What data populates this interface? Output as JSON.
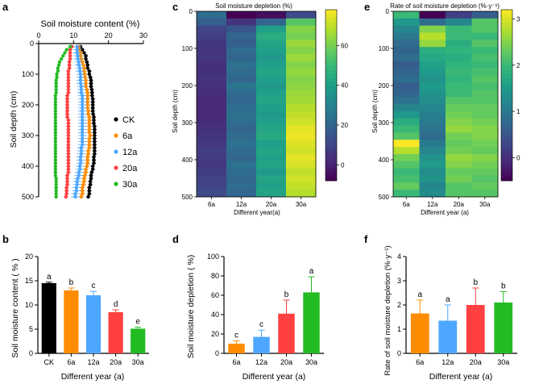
{
  "panel_labels": {
    "a": "a",
    "b": "b",
    "c": "c",
    "d": "d",
    "e": "e",
    "f": "f"
  },
  "colors": {
    "CK": "#000000",
    "6a": "#ff8c00",
    "12a": "#4da6ff",
    "20a": "#ff4040",
    "30a": "#22bb22"
  },
  "chart_data": [
    {
      "id": "a",
      "type": "scatter",
      "title": "Soil moisture content (%)",
      "ylabel": "Soil depth (cm)",
      "xlim": [
        0,
        30
      ],
      "ylim": [
        500,
        0
      ],
      "xticks": [
        "0",
        "10",
        "20",
        "30"
      ],
      "yticks": [
        "0",
        "100",
        "200",
        "300",
        "400",
        "500"
      ],
      "depths": [
        10,
        20,
        30,
        40,
        50,
        60,
        70,
        80,
        90,
        100,
        110,
        120,
        130,
        140,
        150,
        160,
        170,
        180,
        190,
        200,
        210,
        220,
        230,
        240,
        250,
        260,
        270,
        280,
        290,
        300,
        310,
        320,
        330,
        340,
        350,
        360,
        370,
        380,
        390,
        400,
        410,
        420,
        430,
        440,
        450,
        460,
        470,
        480,
        490,
        500
      ],
      "legend": [
        "CK",
        "6a",
        "12a",
        "20a",
        "30a"
      ],
      "series": [
        {
          "name": "CK",
          "err": 0.6,
          "values": [
            12,
            12.5,
            13,
            13.5,
            13.5,
            13.8,
            14,
            14,
            14.5,
            14.5,
            14.8,
            15,
            15,
            15,
            15.2,
            15.3,
            15.3,
            15.5,
            15.5,
            15.5,
            15.5,
            15.5,
            15.6,
            15.8,
            15.8,
            15.8,
            16,
            16,
            16,
            16,
            16,
            16,
            16,
            16,
            16,
            16,
            15.8,
            15.8,
            15.8,
            15.5,
            15.5,
            15.2,
            15,
            15,
            14.8,
            14.8,
            14.5,
            14.5,
            14.5,
            14.2
          ]
        },
        {
          "name": "6a",
          "err": 0.8,
          "values": [
            11.5,
            11.5,
            12,
            12,
            12.2,
            12.5,
            12.8,
            13,
            13,
            13.2,
            13.3,
            13.5,
            13.5,
            13.5,
            13.8,
            14,
            14,
            14,
            14,
            14,
            14,
            14.2,
            14.2,
            14.5,
            14.5,
            14.5,
            14.5,
            14.5,
            14.5,
            14.8,
            14.5,
            14.5,
            14.5,
            14.5,
            14.2,
            14.2,
            14,
            14,
            14,
            13.8,
            13.5,
            13.5,
            13.2,
            13,
            13,
            12.8,
            12.5,
            12.5,
            12.5,
            12.2
          ]
        },
        {
          "name": "12a",
          "err": 1.2,
          "values": [
            11,
            11,
            11,
            11.2,
            11.2,
            11.5,
            11.5,
            11.8,
            11.8,
            12,
            12,
            12,
            12,
            12.2,
            12.2,
            12.2,
            12.5,
            12.5,
            12.5,
            12.5,
            12.5,
            12.5,
            12.5,
            12.5,
            12.5,
            12.5,
            12.5,
            12.5,
            12.5,
            12.5,
            12.5,
            12.5,
            12.5,
            12.2,
            12.2,
            12.2,
            12,
            12,
            12,
            11.8,
            11.8,
            11.5,
            11.5,
            11.2,
            11,
            11,
            10.8,
            10.8,
            10.5,
            10.5
          ]
        },
        {
          "name": "20a",
          "err": 0.6,
          "values": [
            9.5,
            9,
            9,
            9,
            9,
            8.8,
            8.8,
            8.8,
            8.5,
            8.5,
            8.5,
            8.5,
            8.5,
            8.5,
            8.5,
            8.5,
            8.2,
            8.2,
            8.2,
            8.2,
            8.2,
            8.2,
            8.2,
            8.2,
            8.5,
            8.5,
            8.5,
            8.5,
            8.5,
            8.5,
            8.5,
            8.5,
            8.5,
            8.5,
            8.5,
            8.5,
            8.5,
            8.5,
            8.5,
            8.5,
            8.5,
            8.5,
            8.2,
            8.2,
            8.2,
            8.2,
            8,
            8,
            8,
            7.8
          ]
        },
        {
          "name": "30a",
          "err": 0.3,
          "values": [
            9,
            8,
            7.5,
            7,
            6.5,
            6,
            5.8,
            5.5,
            5.5,
            5.2,
            5.2,
            5,
            5,
            5,
            5,
            5,
            4.8,
            4.8,
            4.8,
            4.8,
            4.8,
            4.8,
            4.8,
            4.8,
            4.8,
            4.8,
            4.8,
            4.8,
            4.8,
            4.8,
            4.8,
            4.8,
            4.8,
            4.8,
            4.8,
            4.8,
            4.8,
            4.8,
            4.8,
            4.8,
            4.8,
            4.8,
            4.8,
            5,
            5,
            5,
            5,
            5,
            5,
            5
          ]
        }
      ]
    },
    {
      "id": "b",
      "type": "bar",
      "categories": [
        "CK",
        "6a",
        "12a",
        "20a",
        "30a"
      ],
      "values": [
        14.5,
        13,
        12,
        8.5,
        5.1
      ],
      "errors": [
        0.2,
        0.5,
        0.8,
        0.5,
        0.3
      ],
      "letters": [
        "a",
        "b",
        "c",
        "d",
        "e"
      ],
      "ylabel": "Soil moisture content ( % )",
      "xlabel": "Different year (a)",
      "ylim": [
        0,
        20
      ],
      "yticks": [
        "0",
        "5",
        "10",
        "15",
        "20"
      ]
    },
    {
      "id": "c",
      "type": "heatmap",
      "title": "Soil moisture depletion (%)",
      "ylabel": "Soil depth (cm)",
      "xlabel": "Different year(a)",
      "categories": [
        "6a",
        "12a",
        "20a",
        "30a"
      ],
      "yticks": [
        "0",
        "100",
        "200",
        "300",
        "400",
        "500"
      ],
      "colorbar_ticks": [
        "0",
        "20",
        "40",
        "60"
      ],
      "zlim": [
        -8,
        78
      ],
      "values": [
        [
          22,
          -8,
          -5,
          12
        ],
        [
          18,
          5,
          20,
          55
        ],
        [
          10,
          15,
          40,
          62
        ],
        [
          8,
          20,
          45,
          60
        ],
        [
          6,
          18,
          42,
          65
        ],
        [
          5,
          22,
          40,
          62
        ],
        [
          6,
          20,
          38,
          65
        ],
        [
          4,
          24,
          40,
          62
        ],
        [
          4,
          22,
          42,
          64
        ],
        [
          5,
          20,
          40,
          62
        ],
        [
          4,
          25,
          38,
          63
        ],
        [
          3,
          22,
          40,
          65
        ],
        [
          2,
          20,
          42,
          66
        ],
        [
          2,
          22,
          40,
          68
        ],
        [
          2,
          24,
          38,
          70
        ],
        [
          3,
          22,
          40,
          72
        ],
        [
          4,
          20,
          42,
          75
        ],
        [
          5,
          22,
          44,
          76
        ],
        [
          6,
          24,
          40,
          74
        ],
        [
          8,
          22,
          42,
          72
        ],
        [
          7,
          20,
          40,
          75
        ],
        [
          6,
          24,
          42,
          73
        ],
        [
          8,
          22,
          38,
          70
        ],
        [
          9,
          20,
          42,
          72
        ],
        [
          10,
          22,
          40,
          70
        ],
        [
          12,
          20,
          42,
          68
        ]
      ]
    },
    {
      "id": "d",
      "type": "bar",
      "categories": [
        "6a",
        "12a",
        "20a",
        "30a"
      ],
      "values": [
        10,
        17,
        41,
        63
      ],
      "errors": [
        3,
        7,
        14,
        16
      ],
      "letters": [
        "c",
        "c",
        "b",
        "a"
      ],
      "ylabel": "Soil moisture depletion ( %)",
      "xlabel": "Different year (a)",
      "ylim": [
        0,
        100
      ],
      "yticks": [
        "0",
        "20",
        "40",
        "60",
        "80",
        "100"
      ]
    },
    {
      "id": "e",
      "type": "heatmap",
      "title": "Rate of soil moisture depletion (%·y⁻¹)",
      "ylabel": "Soil depth (cm)",
      "xlabel": "Different year (a)",
      "categories": [
        "6a",
        "12a",
        "20a",
        "30a"
      ],
      "yticks": [
        "0",
        "100",
        "200",
        "300",
        "400",
        "500"
      ],
      "colorbar_ticks": [
        "0",
        "1",
        "2",
        "3"
      ],
      "zlim": [
        -0.5,
        3.2
      ],
      "values": [
        [
          2.0,
          -0.5,
          0.2,
          0.6
        ],
        [
          1.5,
          0.8,
          1.2,
          2.2
        ],
        [
          1.2,
          2.5,
          2.0,
          2.2
        ],
        [
          1.0,
          2.8,
          2.0,
          2.0
        ],
        [
          0.8,
          2.6,
          1.8,
          2.2
        ],
        [
          0.7,
          1.8,
          1.9,
          2.0
        ],
        [
          0.8,
          1.7,
          1.8,
          2.1
        ],
        [
          0.6,
          1.6,
          1.9,
          2.0
        ],
        [
          0.7,
          1.5,
          2.0,
          2.1
        ],
        [
          0.8,
          1.4,
          1.9,
          2.2
        ],
        [
          0.6,
          1.5,
          2.0,
          2.1
        ],
        [
          0.7,
          1.4,
          2.0,
          2.2
        ],
        [
          0.9,
          1.3,
          2.2,
          2.2
        ],
        [
          1.2,
          1.2,
          2.3,
          2.3
        ],
        [
          1.5,
          1.1,
          2.4,
          2.3
        ],
        [
          1.8,
          1.0,
          2.5,
          2.4
        ],
        [
          2.0,
          0.9,
          2.6,
          2.5
        ],
        [
          2.2,
          0.8,
          2.4,
          2.5
        ],
        [
          3.2,
          1.0,
          2.3,
          2.4
        ],
        [
          2.8,
          1.2,
          2.4,
          2.3
        ],
        [
          2.4,
          1.4,
          2.6,
          2.5
        ],
        [
          2.2,
          1.5,
          2.5,
          2.4
        ],
        [
          2.0,
          1.3,
          2.3,
          2.3
        ],
        [
          2.1,
          1.4,
          2.4,
          2.2
        ],
        [
          2.3,
          1.2,
          2.2,
          2.3
        ],
        [
          2.0,
          1.3,
          2.2,
          2.2
        ]
      ]
    },
    {
      "id": "f",
      "type": "bar",
      "categories": [
        "6a",
        "12a",
        "20a",
        "30a"
      ],
      "values": [
        1.65,
        1.35,
        2.0,
        2.1
      ],
      "errors": [
        0.55,
        0.65,
        0.7,
        0.45
      ],
      "letters": [
        "a",
        "a",
        "b",
        "b"
      ],
      "ylabel": "Rate of soil moisture depletion (%·y⁻¹)",
      "xlabel": "Different year (a)",
      "ylim": [
        0,
        4
      ],
      "yticks": [
        "0",
        "1",
        "2",
        "3",
        "4"
      ]
    }
  ]
}
